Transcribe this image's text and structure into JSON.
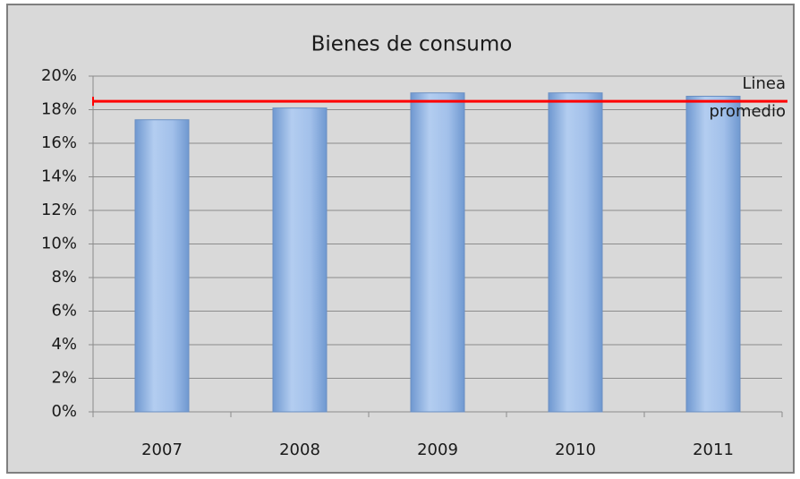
{
  "chart_data": {
    "type": "bar",
    "title": "Bienes de consumo",
    "categories": [
      "2007",
      "2008",
      "2009",
      "2010",
      "2011"
    ],
    "values": [
      17.4,
      18.1,
      19.0,
      19.0,
      18.8
    ],
    "color": "#9dbde9",
    "ylim": [
      0,
      20
    ],
    "yticks": [
      {
        "value": 0,
        "label": "0%"
      },
      {
        "value": 2,
        "label": "2%"
      },
      {
        "value": 4,
        "label": "4%"
      },
      {
        "value": 6,
        "label": "6%"
      },
      {
        "value": 8,
        "label": "8%"
      },
      {
        "value": 10,
        "label": "10%"
      },
      {
        "value": 12,
        "label": "12%"
      },
      {
        "value": 14,
        "label": "14%"
      },
      {
        "value": 16,
        "label": "16%"
      },
      {
        "value": 18,
        "label": "18%"
      },
      {
        "value": 20,
        "label": "20%"
      }
    ],
    "grid": true,
    "reference_line": {
      "value": 18.5,
      "color": "#ff0000",
      "label_lines": [
        "Linea",
        "promedio"
      ]
    }
  }
}
